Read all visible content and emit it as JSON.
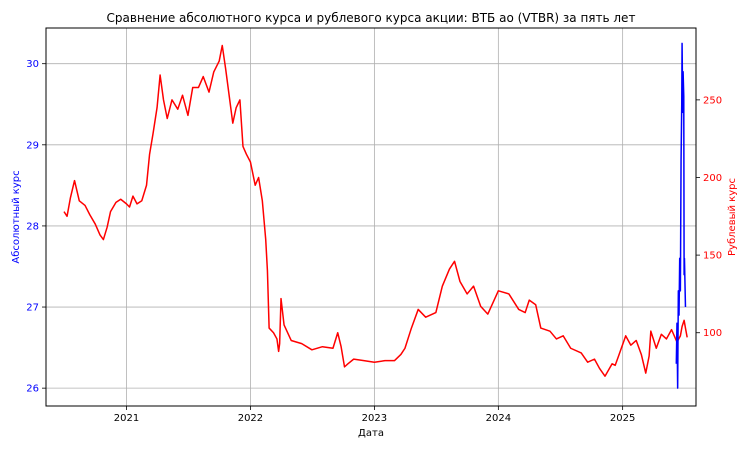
{
  "chart_data": {
    "type": "line",
    "title": "Сравнение абсолютного курса и рублевого курса акции: ВТБ ао (VTBR) за пять лет",
    "xlabel": "Дата",
    "ylabel_left": "Абсолютный курс",
    "ylabel_right": "Рублевый курс",
    "grid": true,
    "colors": {
      "left_axis": "#0000ff",
      "right_axis": "#ff0000",
      "grid": "#b0b0b0",
      "axes": "#000000"
    },
    "x_ticks": [
      "2021",
      "2022",
      "2023",
      "2024",
      "2025"
    ],
    "xlim": [
      "2020-05-09",
      "2025-08-05"
    ],
    "y_left": {
      "ticks": [
        "26",
        "27",
        "28",
        "29",
        "30"
      ],
      "ylim": [
        25.78,
        30.44
      ]
    },
    "y_right": {
      "ticks": [
        "100",
        "150",
        "200",
        "250"
      ],
      "ylim": [
        52.8,
        296.3
      ]
    },
    "series": [
      {
        "axis": "right",
        "color": "#ff0000",
        "points": [
          [
            "2020-07-01",
            178
          ],
          [
            "2020-07-10",
            175
          ],
          [
            "2020-07-20",
            187
          ],
          [
            "2020-08-01",
            198
          ],
          [
            "2020-08-15",
            185
          ],
          [
            "2020-09-01",
            182
          ],
          [
            "2020-09-15",
            176
          ],
          [
            "2020-10-01",
            170
          ],
          [
            "2020-10-15",
            163
          ],
          [
            "2020-10-25",
            160
          ],
          [
            "2020-11-05",
            168
          ],
          [
            "2020-11-15",
            178
          ],
          [
            "2020-12-01",
            184
          ],
          [
            "2020-12-15",
            186
          ],
          [
            "2021-01-01",
            183
          ],
          [
            "2021-01-10",
            181
          ],
          [
            "2021-01-20",
            188
          ],
          [
            "2021-02-01",
            183
          ],
          [
            "2021-02-15",
            185
          ],
          [
            "2021-03-01",
            195
          ],
          [
            "2021-03-10",
            215
          ],
          [
            "2021-03-20",
            228
          ],
          [
            "2021-04-01",
            245
          ],
          [
            "2021-04-10",
            266
          ],
          [
            "2021-04-20",
            250
          ],
          [
            "2021-05-01",
            238
          ],
          [
            "2021-05-15",
            250
          ],
          [
            "2021-06-01",
            244
          ],
          [
            "2021-06-15",
            253
          ],
          [
            "2021-07-01",
            240
          ],
          [
            "2021-07-15",
            258
          ],
          [
            "2021-08-01",
            258
          ],
          [
            "2021-08-15",
            265
          ],
          [
            "2021-09-01",
            255
          ],
          [
            "2021-09-15",
            268
          ],
          [
            "2021-10-01",
            275
          ],
          [
            "2021-10-10",
            285
          ],
          [
            "2021-10-20",
            270
          ],
          [
            "2021-11-01",
            250
          ],
          [
            "2021-11-10",
            235
          ],
          [
            "2021-11-20",
            245
          ],
          [
            "2021-12-01",
            250
          ],
          [
            "2021-12-10",
            220
          ],
          [
            "2021-12-20",
            215
          ],
          [
            "2022-01-01",
            210
          ],
          [
            "2022-01-15",
            195
          ],
          [
            "2022-01-25",
            200
          ],
          [
            "2022-02-05",
            185
          ],
          [
            "2022-02-15",
            160
          ],
          [
            "2022-02-20",
            140
          ],
          [
            "2022-02-25",
            103
          ],
          [
            "2022-03-10",
            100
          ],
          [
            "2022-03-20",
            96
          ],
          [
            "2022-03-25",
            88
          ],
          [
            "2022-03-28",
            93
          ],
          [
            "2022-04-01",
            122
          ],
          [
            "2022-04-10",
            105
          ],
          [
            "2022-05-01",
            95
          ],
          [
            "2022-06-01",
            93
          ],
          [
            "2022-07-01",
            89
          ],
          [
            "2022-08-01",
            91
          ],
          [
            "2022-09-01",
            90
          ],
          [
            "2022-09-15",
            100
          ],
          [
            "2022-09-25",
            91
          ],
          [
            "2022-10-05",
            78
          ],
          [
            "2022-10-15",
            80
          ],
          [
            "2022-11-01",
            83
          ],
          [
            "2022-12-01",
            82
          ],
          [
            "2023-01-01",
            81
          ],
          [
            "2023-02-01",
            82
          ],
          [
            "2023-03-01",
            82
          ],
          [
            "2023-03-20",
            86
          ],
          [
            "2023-04-01",
            90
          ],
          [
            "2023-04-20",
            103
          ],
          [
            "2023-05-10",
            115
          ],
          [
            "2023-06-01",
            110
          ],
          [
            "2023-07-01",
            113
          ],
          [
            "2023-07-20",
            130
          ],
          [
            "2023-08-10",
            141
          ],
          [
            "2023-08-25",
            146
          ],
          [
            "2023-09-10",
            133
          ],
          [
            "2023-10-01",
            125
          ],
          [
            "2023-10-20",
            130
          ],
          [
            "2023-11-10",
            117
          ],
          [
            "2023-12-01",
            112
          ],
          [
            "2024-01-01",
            127
          ],
          [
            "2024-02-01",
            125
          ],
          [
            "2024-03-01",
            115
          ],
          [
            "2024-03-20",
            113
          ],
          [
            "2024-04-01",
            121
          ],
          [
            "2024-04-20",
            118
          ],
          [
            "2024-05-05",
            103
          ],
          [
            "2024-06-01",
            101
          ],
          [
            "2024-06-20",
            96
          ],
          [
            "2024-07-10",
            98
          ],
          [
            "2024-08-01",
            90
          ],
          [
            "2024-09-01",
            87
          ],
          [
            "2024-09-20",
            81
          ],
          [
            "2024-10-10",
            83
          ],
          [
            "2024-10-25",
            77
          ],
          [
            "2024-11-10",
            72
          ],
          [
            "2024-12-01",
            80
          ],
          [
            "2024-12-10",
            79
          ],
          [
            "2024-12-20",
            85
          ],
          [
            "2025-01-10",
            98
          ],
          [
            "2025-01-25",
            92
          ],
          [
            "2025-02-10",
            95
          ],
          [
            "2025-02-25",
            86
          ],
          [
            "2025-03-10",
            74
          ],
          [
            "2025-03-20",
            85
          ],
          [
            "2025-03-25",
            101
          ],
          [
            "2025-04-10",
            90
          ],
          [
            "2025-04-25",
            99
          ],
          [
            "2025-05-10",
            96
          ],
          [
            "2025-05-25",
            102
          ],
          [
            "2025-06-10",
            94
          ],
          [
            "2025-06-20",
            98
          ],
          [
            "2025-06-25",
            104
          ],
          [
            "2025-07-01",
            108
          ],
          [
            "2025-07-05",
            103
          ],
          [
            "2025-07-10",
            97
          ]
        ]
      },
      {
        "axis": "left",
        "color": "#0000ff",
        "points": [
          [
            "2025-06-08",
            26.3
          ],
          [
            "2025-06-10",
            26.8
          ],
          [
            "2025-06-12",
            26.0
          ],
          [
            "2025-06-14",
            27.2
          ],
          [
            "2025-06-16",
            26.9
          ],
          [
            "2025-06-18",
            27.6
          ],
          [
            "2025-06-20",
            27.2
          ],
          [
            "2025-06-22",
            28.8
          ],
          [
            "2025-06-24",
            29.5
          ],
          [
            "2025-06-25",
            30.25
          ],
          [
            "2025-06-27",
            29.4
          ],
          [
            "2025-06-28",
            29.9
          ],
          [
            "2025-06-30",
            29.6
          ],
          [
            "2025-07-01",
            27.4
          ],
          [
            "2025-07-02",
            27.6
          ],
          [
            "2025-07-05",
            27.0
          ]
        ]
      }
    ]
  }
}
